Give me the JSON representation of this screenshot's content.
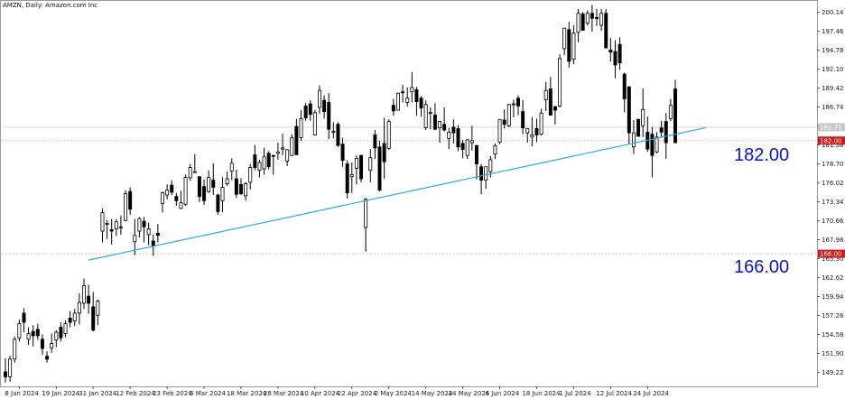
{
  "header": {
    "text": "AMZN, Daily:  Amazon.com Inc"
  },
  "colors": {
    "background": "#ffffff",
    "candle": "#000000",
    "trendline": "#29a8e6",
    "level_tag_bg": "#d11a1a",
    "annotation": "#0a17c8",
    "grid_line": "#e6b8b8"
  },
  "annotations": {
    "upper_level": "182.00",
    "lower_level": "166.00"
  },
  "tags": {
    "current_price": "181.71",
    "price_level_1": "182.00",
    "price_level_2": "166.00"
  },
  "chart_data": {
    "type": "candlestick",
    "title": "AMZN, Daily:  Amazon.com Inc",
    "x_tick_labels": [
      "8 Jan 2024",
      "19 Jan 2024",
      "31 Jan 2024",
      "12 Feb 2024",
      "23 Feb 2024",
      "6 Mar 2024",
      "18 Mar 2024",
      "28 Mar 2024",
      "10 Apr 2024",
      "22 Apr 2024",
      "2 May 2024",
      "14 May 2024",
      "24 May 2024",
      "6 Jun 2024",
      "18 Jun 2024",
      "1 Jul 2024",
      "12 Jul 2024",
      "24 Jul 2024"
    ],
    "y_tick_labels": [
      "200.14",
      "197.46",
      "194.78",
      "192.10",
      "189.42",
      "186.74",
      "184.06",
      "181.38",
      "178.70",
      "176.02",
      "173.34",
      "170.66",
      "167.98",
      "165.30",
      "162.62",
      "159.94",
      "157.26",
      "154.58",
      "151.90",
      "149.22"
    ],
    "ylim": [
      147.5,
      201.5
    ],
    "levels": [
      182.0,
      166.0
    ],
    "trendline": {
      "start": [
        "2024-01-30",
        165.1
      ],
      "end": [
        "2024-08-02",
        182.9
      ]
    },
    "candles": [
      {
        "d": "2024-01-03",
        "o": 149.3,
        "h": 151.2,
        "l": 147.8,
        "c": 148.6
      },
      {
        "d": "2024-01-04",
        "o": 148.6,
        "h": 151.6,
        "l": 147.9,
        "c": 151.1
      },
      {
        "d": "2024-01-05",
        "o": 151.1,
        "h": 154.3,
        "l": 150.6,
        "c": 153.9
      },
      {
        "d": "2024-01-08",
        "o": 154.1,
        "h": 156.7,
        "l": 153.6,
        "c": 156.1
      },
      {
        "d": "2024-01-09",
        "o": 157.6,
        "h": 158.3,
        "l": 154.9,
        "c": 156.3
      },
      {
        "d": "2024-01-10",
        "o": 153.9,
        "h": 155.6,
        "l": 153.1,
        "c": 154.7
      },
      {
        "d": "2024-01-11",
        "o": 155.0,
        "h": 155.9,
        "l": 152.9,
        "c": 154.4
      },
      {
        "d": "2024-01-12",
        "o": 155.3,
        "h": 156.1,
        "l": 153.8,
        "c": 154.4
      },
      {
        "d": "2024-01-16",
        "o": 153.9,
        "h": 154.6,
        "l": 151.7,
        "c": 152.6
      },
      {
        "d": "2024-01-17",
        "o": 151.5,
        "h": 152.2,
        "l": 150.6,
        "c": 151.1
      },
      {
        "d": "2024-01-18",
        "o": 152.7,
        "h": 154.7,
        "l": 152.0,
        "c": 153.3
      },
      {
        "d": "2024-01-19",
        "o": 153.8,
        "h": 155.2,
        "l": 152.8,
        "c": 154.9
      },
      {
        "d": "2024-01-22",
        "o": 155.6,
        "h": 156.3,
        "l": 153.6,
        "c": 154.1
      },
      {
        "d": "2024-01-23",
        "o": 154.7,
        "h": 156.6,
        "l": 154.2,
        "c": 156.1
      },
      {
        "d": "2024-01-24",
        "o": 156.9,
        "h": 157.9,
        "l": 155.6,
        "c": 156.3
      },
      {
        "d": "2024-01-25",
        "o": 156.5,
        "h": 158.2,
        "l": 155.8,
        "c": 157.6
      },
      {
        "d": "2024-01-26",
        "o": 157.6,
        "h": 160.4,
        "l": 156.0,
        "c": 159.1
      },
      {
        "d": "2024-01-29",
        "o": 159.0,
        "h": 162.5,
        "l": 158.2,
        "c": 161.5
      },
      {
        "d": "2024-01-30",
        "o": 160.0,
        "h": 161.6,
        "l": 157.5,
        "c": 159.0
      },
      {
        "d": "2024-01-31",
        "o": 158.5,
        "h": 160.6,
        "l": 155.0,
        "c": 155.2
      },
      {
        "d": "2024-02-01",
        "o": 157.3,
        "h": 159.5,
        "l": 155.9,
        "c": 159.3
      },
      {
        "d": "2024-02-02",
        "o": 169.2,
        "h": 172.4,
        "l": 167.6,
        "c": 171.8
      },
      {
        "d": "2024-02-05",
        "o": 170.2,
        "h": 170.8,
        "l": 168.1,
        "c": 170.3
      },
      {
        "d": "2024-02-06",
        "o": 169.4,
        "h": 170.9,
        "l": 167.3,
        "c": 169.2
      },
      {
        "d": "2024-02-07",
        "o": 169.5,
        "h": 170.9,
        "l": 168.5,
        "c": 170.5
      },
      {
        "d": "2024-02-08",
        "o": 169.7,
        "h": 171.4,
        "l": 168.7,
        "c": 169.8
      },
      {
        "d": "2024-02-09",
        "o": 170.7,
        "h": 175.0,
        "l": 170.6,
        "c": 174.5
      },
      {
        "d": "2024-02-12",
        "o": 174.8,
        "h": 175.4,
        "l": 171.5,
        "c": 172.3
      },
      {
        "d": "2024-02-13",
        "o": 167.7,
        "h": 170.9,
        "l": 165.8,
        "c": 168.6
      },
      {
        "d": "2024-02-14",
        "o": 169.2,
        "h": 171.2,
        "l": 168.3,
        "c": 170.98
      },
      {
        "d": "2024-02-15",
        "o": 170.6,
        "h": 171.2,
        "l": 167.6,
        "c": 169.8
      },
      {
        "d": "2024-02-16",
        "o": 168.7,
        "h": 170.4,
        "l": 167.2,
        "c": 169.5
      },
      {
        "d": "2024-02-20",
        "o": 167.8,
        "h": 168.7,
        "l": 165.7,
        "c": 167.1
      },
      {
        "d": "2024-02-21",
        "o": 168.9,
        "h": 170.2,
        "l": 167.6,
        "c": 168.6
      },
      {
        "d": "2024-02-22",
        "o": 173.1,
        "h": 174.8,
        "l": 171.8,
        "c": 174.6
      },
      {
        "d": "2024-02-23",
        "o": 174.3,
        "h": 175.8,
        "l": 173.7,
        "c": 174.99
      },
      {
        "d": "2024-02-26",
        "o": 175.7,
        "h": 176.4,
        "l": 174.3,
        "c": 174.7
      },
      {
        "d": "2024-02-27",
        "o": 174.1,
        "h": 174.6,
        "l": 172.8,
        "c": 173.5
      },
      {
        "d": "2024-02-28",
        "o": 172.4,
        "h": 174.9,
        "l": 172.3,
        "c": 173.2
      },
      {
        "d": "2024-02-29",
        "o": 173.0,
        "h": 177.2,
        "l": 172.8,
        "c": 176.8
      },
      {
        "d": "2024-03-01",
        "o": 176.75,
        "h": 178.7,
        "l": 176.3,
        "c": 178.2
      },
      {
        "d": "2024-03-04",
        "o": 177.5,
        "h": 180.1,
        "l": 177.5,
        "c": 177.6
      },
      {
        "d": "2024-03-05",
        "o": 176.9,
        "h": 176.9,
        "l": 173.3,
        "c": 174.1
      },
      {
        "d": "2024-03-06",
        "o": 175.5,
        "h": 176.5,
        "l": 172.9,
        "c": 173.5
      },
      {
        "d": "2024-03-07",
        "o": 174.8,
        "h": 177.8,
        "l": 174.6,
        "c": 176.8
      },
      {
        "d": "2024-03-08",
        "o": 176.4,
        "h": 178.8,
        "l": 174.3,
        "c": 175.4
      },
      {
        "d": "2024-03-11",
        "o": 174.3,
        "h": 174.5,
        "l": 171.5,
        "c": 171.96
      },
      {
        "d": "2024-03-12",
        "o": 173.5,
        "h": 176.8,
        "l": 171.9,
        "c": 175.4
      },
      {
        "d": "2024-03-13",
        "o": 175.9,
        "h": 177.6,
        "l": 175.6,
        "c": 176.6
      },
      {
        "d": "2024-03-14",
        "o": 177.7,
        "h": 179.5,
        "l": 176.4,
        "c": 178.8
      },
      {
        "d": "2024-03-15",
        "o": 176.6,
        "h": 177.9,
        "l": 173.9,
        "c": 174.4
      },
      {
        "d": "2024-03-18",
        "o": 175.8,
        "h": 176.7,
        "l": 174.3,
        "c": 174.5
      },
      {
        "d": "2024-03-19",
        "o": 174.2,
        "h": 176.1,
        "l": 173.5,
        "c": 175.9
      },
      {
        "d": "2024-03-20",
        "o": 176.1,
        "h": 178.7,
        "l": 175.1,
        "c": 178.2
      },
      {
        "d": "2024-03-21",
        "o": 179.99,
        "h": 181.4,
        "l": 177.8,
        "c": 178.2
      },
      {
        "d": "2024-03-22",
        "o": 177.8,
        "h": 179.3,
        "l": 176.8,
        "c": 178.9
      },
      {
        "d": "2024-03-25",
        "o": 178.0,
        "h": 180.99,
        "l": 177.2,
        "c": 179.7
      },
      {
        "d": "2024-03-26",
        "o": 180.2,
        "h": 180.5,
        "l": 177.9,
        "c": 178.3
      },
      {
        "d": "2024-03-27",
        "o": 179.9,
        "h": 180.0,
        "l": 177.2,
        "c": 179.8
      },
      {
        "d": "2024-03-28",
        "o": 180.2,
        "h": 181.7,
        "l": 179.3,
        "c": 180.4
      },
      {
        "d": "2024-04-01",
        "o": 180.8,
        "h": 183.0,
        "l": 179.95,
        "c": 180.97
      },
      {
        "d": "2024-04-02",
        "o": 179.1,
        "h": 180.8,
        "l": 178.4,
        "c": 180.7
      },
      {
        "d": "2024-04-03",
        "o": 179.9,
        "h": 182.9,
        "l": 179.8,
        "c": 182.4
      },
      {
        "d": "2024-04-04",
        "o": 184.0,
        "h": 185.1,
        "l": 180.0,
        "c": 180.0
      },
      {
        "d": "2024-04-05",
        "o": 182.4,
        "h": 186.3,
        "l": 181.97,
        "c": 185.1
      },
      {
        "d": "2024-04-08",
        "o": 186.9,
        "h": 187.3,
        "l": 184.8,
        "c": 185.2
      },
      {
        "d": "2024-04-09",
        "o": 187.2,
        "h": 187.7,
        "l": 184.8,
        "c": 185.7
      },
      {
        "d": "2024-04-10",
        "o": 182.8,
        "h": 186.3,
        "l": 182.7,
        "c": 185.95
      },
      {
        "d": "2024-04-11",
        "o": 186.7,
        "h": 189.8,
        "l": 185.8,
        "c": 189.1
      },
      {
        "d": "2024-04-12",
        "o": 187.7,
        "h": 188.4,
        "l": 185.1,
        "c": 186.1
      },
      {
        "d": "2024-04-15",
        "o": 187.4,
        "h": 188.7,
        "l": 182.2,
        "c": 183.6
      },
      {
        "d": "2024-04-16",
        "o": 183.3,
        "h": 184.6,
        "l": 182.3,
        "c": 183.3
      },
      {
        "d": "2024-04-17",
        "o": 184.3,
        "h": 184.6,
        "l": 181.1,
        "c": 181.3
      },
      {
        "d": "2024-04-18",
        "o": 181.5,
        "h": 182.4,
        "l": 178.3,
        "c": 179.2
      },
      {
        "d": "2024-04-19",
        "o": 178.7,
        "h": 179.2,
        "l": 173.8,
        "c": 174.6
      },
      {
        "d": "2024-04-22",
        "o": 176.9,
        "h": 178.9,
        "l": 174.6,
        "c": 177.2
      },
      {
        "d": "2024-04-23",
        "o": 178.1,
        "h": 179.9,
        "l": 175.8,
        "c": 179.5
      },
      {
        "d": "2024-04-24",
        "o": 179.9,
        "h": 180.0,
        "l": 176.1,
        "c": 176.6
      },
      {
        "d": "2024-04-25",
        "o": 169.7,
        "h": 173.9,
        "l": 166.3,
        "c": 173.7
      },
      {
        "d": "2024-04-26",
        "o": 177.8,
        "h": 180.8,
        "l": 176.1,
        "c": 179.6
      },
      {
        "d": "2024-04-29",
        "o": 182.8,
        "h": 183.5,
        "l": 179.4,
        "c": 180.96
      },
      {
        "d": "2024-04-30",
        "o": 181.1,
        "h": 182.0,
        "l": 174.8,
        "c": 175.0
      },
      {
        "d": "2024-05-01",
        "o": 181.6,
        "h": 185.2,
        "l": 176.6,
        "c": 179.0
      },
      {
        "d": "2024-05-02",
        "o": 180.9,
        "h": 185.0,
        "l": 180.7,
        "c": 184.7
      },
      {
        "d": "2024-05-03",
        "o": 186.99,
        "h": 187.9,
        "l": 185.5,
        "c": 186.2
      },
      {
        "d": "2024-05-06",
        "o": 186.3,
        "h": 188.8,
        "l": 186.3,
        "c": 188.7
      },
      {
        "d": "2024-05-07",
        "o": 188.9,
        "h": 189.9,
        "l": 187.4,
        "c": 188.76
      },
      {
        "d": "2024-05-08",
        "o": 187.4,
        "h": 189.5,
        "l": 186.8,
        "c": 188.0
      },
      {
        "d": "2024-05-09",
        "o": 188.9,
        "h": 191.7,
        "l": 187.4,
        "c": 189.5
      },
      {
        "d": "2024-05-10",
        "o": 189.2,
        "h": 189.6,
        "l": 185.5,
        "c": 187.5
      },
      {
        "d": "2024-05-13",
        "o": 188.0,
        "h": 188.3,
        "l": 185.4,
        "c": 186.6
      },
      {
        "d": "2024-05-14",
        "o": 183.8,
        "h": 187.7,
        "l": 183.5,
        "c": 187.1
      },
      {
        "d": "2024-05-15",
        "o": 185.97,
        "h": 186.7,
        "l": 183.6,
        "c": 185.99
      },
      {
        "d": "2024-05-16",
        "o": 185.6,
        "h": 187.3,
        "l": 183.5,
        "c": 183.6
      },
      {
        "d": "2024-05-17",
        "o": 183.8,
        "h": 184.8,
        "l": 181.7,
        "c": 184.7
      },
      {
        "d": "2024-05-20",
        "o": 184.3,
        "h": 186.7,
        "l": 183.3,
        "c": 183.5
      },
      {
        "d": "2024-05-21",
        "o": 182.3,
        "h": 183.8,
        "l": 180.8,
        "c": 183.2
      },
      {
        "d": "2024-05-22",
        "o": 183.9,
        "h": 185.0,
        "l": 181.6,
        "c": 183.1
      },
      {
        "d": "2024-05-23",
        "o": 183.7,
        "h": 184.2,
        "l": 180.5,
        "c": 181.1
      },
      {
        "d": "2024-05-24",
        "o": 181.6,
        "h": 182.1,
        "l": 179.5,
        "c": 180.75
      },
      {
        "d": "2024-05-28",
        "o": 179.9,
        "h": 182.2,
        "l": 179.4,
        "c": 182.1
      },
      {
        "d": "2024-05-29",
        "o": 181.7,
        "h": 184.1,
        "l": 180.6,
        "c": 182.0
      },
      {
        "d": "2024-05-30",
        "o": 181.3,
        "h": 181.4,
        "l": 176.5,
        "c": 178.7
      },
      {
        "d": "2024-05-31",
        "o": 178.3,
        "h": 178.7,
        "l": 174.4,
        "c": 176.4
      },
      {
        "d": "2024-06-03",
        "o": 176.4,
        "h": 178.1,
        "l": 175.2,
        "c": 178.3
      },
      {
        "d": "2024-06-04",
        "o": 177.6,
        "h": 179.8,
        "l": 176.8,
        "c": 179.3
      },
      {
        "d": "2024-06-05",
        "o": 180.1,
        "h": 181.6,
        "l": 179.4,
        "c": 181.3
      },
      {
        "d": "2024-06-06",
        "o": 181.8,
        "h": 185.0,
        "l": 181.5,
        "c": 185.0
      },
      {
        "d": "2024-06-07",
        "o": 184.9,
        "h": 186.4,
        "l": 183.7,
        "c": 184.3
      },
      {
        "d": "2024-06-10",
        "o": 184.1,
        "h": 187.2,
        "l": 183.9,
        "c": 187.1
      },
      {
        "d": "2024-06-11",
        "o": 187.1,
        "h": 187.8,
        "l": 185.3,
        "c": 187.2
      },
      {
        "d": "2024-06-12",
        "o": 188.0,
        "h": 188.4,
        "l": 185.6,
        "c": 186.9
      },
      {
        "d": "2024-06-13",
        "o": 186.1,
        "h": 187.7,
        "l": 182.9,
        "c": 183.8
      },
      {
        "d": "2024-06-14",
        "o": 183.1,
        "h": 183.7,
        "l": 181.7,
        "c": 183.7
      },
      {
        "d": "2024-06-17",
        "o": 182.5,
        "h": 185.3,
        "l": 181.2,
        "c": 182.8
      },
      {
        "d": "2024-06-18",
        "o": 183.7,
        "h": 185.1,
        "l": 181.8,
        "c": 182.8
      },
      {
        "d": "2024-06-20",
        "o": 182.9,
        "h": 186.5,
        "l": 182.7,
        "c": 185.9
      },
      {
        "d": "2024-06-21",
        "o": 187.8,
        "h": 190.3,
        "l": 186.2,
        "c": 189.1
      },
      {
        "d": "2024-06-24",
        "o": 189.3,
        "h": 191.0,
        "l": 185.9,
        "c": 185.6
      },
      {
        "d": "2024-06-25",
        "o": 186.8,
        "h": 186.9,
        "l": 184.3,
        "c": 186.3
      },
      {
        "d": "2024-06-26",
        "o": 186.9,
        "h": 194.2,
        "l": 186.7,
        "c": 193.6
      },
      {
        "d": "2024-06-27",
        "o": 195.0,
        "h": 197.5,
        "l": 194.1,
        "c": 197.9
      },
      {
        "d": "2024-06-28",
        "o": 197.7,
        "h": 198.8,
        "l": 192.3,
        "c": 193.2
      },
      {
        "d": "2024-07-01",
        "o": 193.5,
        "h": 198.3,
        "l": 192.8,
        "c": 197.2
      },
      {
        "d": "2024-07-02",
        "o": 197.3,
        "h": 200.6,
        "l": 195.9,
        "c": 200.0
      },
      {
        "d": "2024-07-03",
        "o": 199.9,
        "h": 200.2,
        "l": 197.9,
        "c": 197.6
      },
      {
        "d": "2024-07-05",
        "o": 198.6,
        "h": 200.4,
        "l": 198.3,
        "c": 200.0
      },
      {
        "d": "2024-07-08",
        "o": 200.0,
        "h": 201.2,
        "l": 197.4,
        "c": 199.3
      },
      {
        "d": "2024-07-09",
        "o": 199.4,
        "h": 200.6,
        "l": 198.2,
        "c": 199.3
      },
      {
        "d": "2024-07-10",
        "o": 198.3,
        "h": 200.6,
        "l": 197.5,
        "c": 200.0
      },
      {
        "d": "2024-07-11",
        "o": 200.0,
        "h": 200.6,
        "l": 195.2,
        "c": 195.1
      },
      {
        "d": "2024-07-12",
        "o": 194.8,
        "h": 196.5,
        "l": 193.2,
        "c": 194.5
      },
      {
        "d": "2024-07-15",
        "o": 194.6,
        "h": 196.2,
        "l": 190.8,
        "c": 192.7
      },
      {
        "d": "2024-07-16",
        "o": 195.6,
        "h": 196.6,
        "l": 192.0,
        "c": 193.0
      },
      {
        "d": "2024-07-17",
        "o": 191.4,
        "h": 191.6,
        "l": 185.99,
        "c": 187.9
      },
      {
        "d": "2024-07-18",
        "o": 189.6,
        "h": 189.7,
        "l": 181.5,
        "c": 183.1
      },
      {
        "d": "2024-07-19",
        "o": 181.1,
        "h": 184.9,
        "l": 180.1,
        "c": 183.1
      },
      {
        "d": "2024-07-22",
        "o": 185.0,
        "h": 185.1,
        "l": 182.7,
        "c": 182.6
      },
      {
        "d": "2024-07-23",
        "o": 184.1,
        "h": 189.4,
        "l": 182.5,
        "c": 186.4
      },
      {
        "d": "2024-07-24",
        "o": 183.2,
        "h": 185.4,
        "l": 180.4,
        "c": 180.8
      },
      {
        "d": "2024-07-25",
        "o": 182.9,
        "h": 183.9,
        "l": 176.8,
        "c": 179.9
      },
      {
        "d": "2024-07-26",
        "o": 180.4,
        "h": 183.2,
        "l": 180.2,
        "c": 182.5
      },
      {
        "d": "2024-07-29",
        "o": 183.8,
        "h": 184.8,
        "l": 182.4,
        "c": 183.2
      },
      {
        "d": "2024-07-30",
        "o": 184.7,
        "h": 185.9,
        "l": 179.4,
        "c": 181.7
      },
      {
        "d": "2024-07-31",
        "o": 185.1,
        "h": 187.9,
        "l": 184.8,
        "c": 186.98
      },
      {
        "d": "2024-08-01",
        "o": 189.3,
        "h": 190.6,
        "l": 181.9,
        "c": 181.7
      }
    ]
  }
}
